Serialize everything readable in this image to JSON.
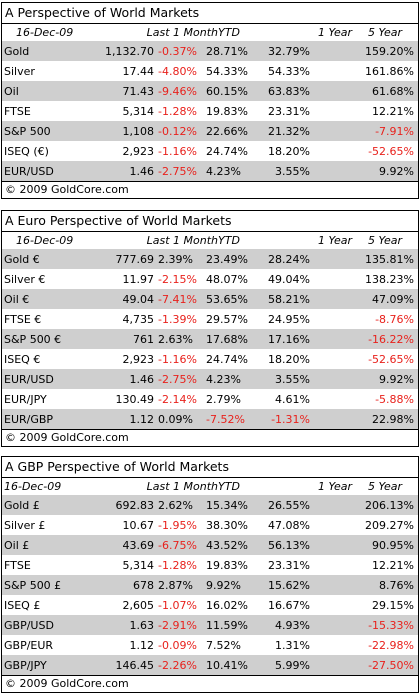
{
  "panels": [
    {
      "title": "A Perspective of World Markets",
      "header": {
        "date": "16-Dec-09",
        "last_month": "Last 1 Month",
        "ytd": "YTD",
        "one_year": "1 Year",
        "five_year": "5 Year"
      },
      "rows": [
        {
          "name": "Gold",
          "last": "1,132.70",
          "month": "-0.37%",
          "ytd": "28.71%",
          "one_year": "32.79%",
          "five_year": "159.20%"
        },
        {
          "name": "Silver",
          "last": "17.44",
          "month": "-4.80%",
          "ytd": "54.33%",
          "one_year": "54.33%",
          "five_year": "161.86%"
        },
        {
          "name": "Oil",
          "last": "71.43",
          "month": "-9.46%",
          "ytd": "60.15%",
          "one_year": "63.83%",
          "five_year": "61.68%"
        },
        {
          "name": "FTSE",
          "last": "5,314",
          "month": "-1.28%",
          "ytd": "19.83%",
          "one_year": "23.31%",
          "five_year": "12.21%"
        },
        {
          "name": "S&P 500",
          "last": "1,108",
          "month": "-0.12%",
          "ytd": "22.66%",
          "one_year": "21.32%",
          "five_year": "-7.91%"
        },
        {
          "name": "ISEQ (€)",
          "last": "2,923",
          "month": "-1.16%",
          "ytd": "24.74%",
          "one_year": "18.20%",
          "five_year": "-52.65%"
        },
        {
          "name": "EUR/USD",
          "last": "1.46",
          "month": "-2.75%",
          "ytd": "4.23%",
          "one_year": "3.55%",
          "five_year": "9.92%"
        }
      ],
      "footer": "© 2009 GoldCore.com"
    },
    {
      "title": "A Euro Perspective of World Markets",
      "header": {
        "date": "16-Dec-09",
        "last_month": "Last 1 Month",
        "ytd": "YTD",
        "one_year": "1 Year",
        "five_year": "5 Year"
      },
      "rows": [
        {
          "name": "Gold €",
          "last": "777.69",
          "month": "2.39%",
          "ytd": "23.49%",
          "one_year": "28.24%",
          "five_year": "135.81%"
        },
        {
          "name": "Silver €",
          "last": "11.97",
          "month": "-2.15%",
          "ytd": "48.07%",
          "one_year": "49.04%",
          "five_year": "138.23%"
        },
        {
          "name": "Oil €",
          "last": "49.04",
          "month": "-7.41%",
          "ytd": "53.65%",
          "one_year": "58.21%",
          "five_year": "47.09%"
        },
        {
          "name": "FTSE €",
          "last": "4,735",
          "month": "-1.39%",
          "ytd": "29.57%",
          "one_year": "24.95%",
          "five_year": "-8.76%"
        },
        {
          "name": "S&P 500 €",
          "last": "761",
          "month": "2.63%",
          "ytd": "17.68%",
          "one_year": "17.16%",
          "five_year": "-16.22%"
        },
        {
          "name": "ISEQ €",
          "last": "2,923",
          "month": "-1.16%",
          "ytd": "24.74%",
          "one_year": "18.20%",
          "five_year": "-52.65%"
        },
        {
          "name": "EUR/USD",
          "last": "1.46",
          "month": "-2.75%",
          "ytd": "4.23%",
          "one_year": "3.55%",
          "five_year": "9.92%"
        },
        {
          "name": "EUR/JPY",
          "last": "130.49",
          "month": "-2.14%",
          "ytd": "2.79%",
          "one_year": "4.61%",
          "five_year": "-5.88%"
        },
        {
          "name": "EUR/GBP",
          "last": "1.12",
          "month": "0.09%",
          "ytd": "-7.52%",
          "one_year": "-1.31%",
          "five_year": "22.98%"
        }
      ],
      "footer": "© 2009 GoldCore.com"
    },
    {
      "title": "A GBP Perspective of World Markets",
      "header": {
        "date": "16-Dec-09",
        "last_month": "Last 1 Month",
        "ytd": "YTD",
        "one_year": "1 Year",
        "five_year": "5 Year"
      },
      "rows": [
        {
          "name": "Gold £",
          "last": "692.83",
          "month": "2.62%",
          "ytd": "15.34%",
          "one_year": "26.55%",
          "five_year": "206.13%"
        },
        {
          "name": "Silver £",
          "last": "10.67",
          "month": "-1.95%",
          "ytd": "38.30%",
          "one_year": "47.08%",
          "five_year": "209.27%"
        },
        {
          "name": "Oil £",
          "last": "43.69",
          "month": "-6.75%",
          "ytd": "43.52%",
          "one_year": "56.13%",
          "five_year": "90.95%"
        },
        {
          "name": "FTSE",
          "last": "5,314",
          "month": "-1.28%",
          "ytd": "19.83%",
          "one_year": "23.31%",
          "five_year": "12.21%"
        },
        {
          "name": "S&P 500 £",
          "last": "678",
          "month": "2.87%",
          "ytd": "9.92%",
          "one_year": "15.62%",
          "five_year": "8.76%"
        },
        {
          "name": "ISEQ £",
          "last": "2,605",
          "month": "-1.07%",
          "ytd": "16.02%",
          "one_year": "16.67%",
          "five_year": "29.15%"
        },
        {
          "name": "GBP/USD",
          "last": "1.63",
          "month": "-2.91%",
          "ytd": "11.59%",
          "one_year": "4.93%",
          "five_year": "-15.33%"
        },
        {
          "name": "GBP/EUR",
          "last": "1.12",
          "month": "-0.09%",
          "ytd": "7.52%",
          "one_year": "1.31%",
          "five_year": "-22.98%"
        },
        {
          "name": "GBP/JPY",
          "last": "146.45",
          "month": "-2.26%",
          "ytd": "10.41%",
          "one_year": "5.99%",
          "five_year": "-27.50%"
        }
      ],
      "footer": "© 2009 GoldCore.com"
    }
  ],
  "colors": {
    "negative": "#e8211c",
    "shade": "#cfcfcf",
    "text": "#000000"
  }
}
